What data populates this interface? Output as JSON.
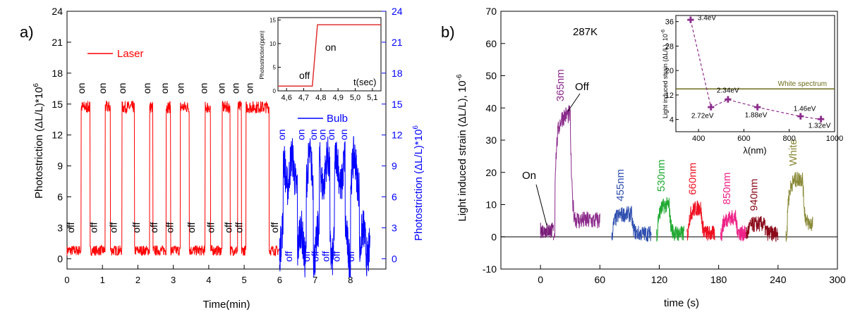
{
  "chart_data": [
    {
      "panel_label": "a)",
      "type": "line",
      "xlabel": "Time(min)",
      "ylabel": "Photostriction (ΔL/L)*10",
      "ylabel_exp": "6",
      "ylabel_right": "Photostriction (ΔL/L)*10",
      "ylabel_right_exp": "6",
      "xlim": [
        0,
        9
      ],
      "ylim": [
        -1,
        24
      ],
      "ylim_right": [
        -1,
        24
      ],
      "x_ticks": [
        "0",
        "1",
        "2",
        "3",
        "4",
        "5",
        "6",
        "7",
        "8"
      ],
      "y_ticks": [
        "0",
        "3",
        "6",
        "9",
        "12",
        "15",
        "18",
        "21",
        "24"
      ],
      "y_ticks_right": [
        "0",
        "3",
        "6",
        "9",
        "12",
        "15",
        "18",
        "21",
        "24"
      ],
      "legend": "top-left",
      "series": [
        {
          "name": "Laser",
          "color": "#ff0000",
          "axis": "left",
          "on_intervals": [
            [
              0.4,
              0.65
            ],
            [
              1.08,
              1.22
            ],
            [
              1.55,
              1.9
            ],
            [
              2.33,
              2.42
            ],
            [
              2.8,
              2.92
            ],
            [
              3.2,
              3.45
            ],
            [
              3.9,
              4.05
            ],
            [
              4.38,
              4.6
            ],
            [
              4.82,
              4.92
            ],
            [
              5.05,
              5.7
            ]
          ],
          "on_level": 14.7,
          "off_level": 0.8
        },
        {
          "name": "Bulb",
          "color": "#0000ff",
          "axis": "right",
          "on_intervals": [
            [
              6.1,
              6.5
            ],
            [
              6.75,
              6.95
            ],
            [
              7.12,
              7.42
            ],
            [
              7.55,
              7.85
            ],
            [
              8.0,
              8.25
            ]
          ],
          "on_level": 8.5,
          "off_level": 1.5
        }
      ],
      "annotations": [
        {
          "text": "on",
          "x": 0.5,
          "y": 16
        },
        {
          "text": "on",
          "x": 1.1,
          "y": 16
        },
        {
          "text": "on",
          "x": 1.65,
          "y": 16
        },
        {
          "text": "on",
          "x": 2.35,
          "y": 16
        },
        {
          "text": "on",
          "x": 2.85,
          "y": 16
        },
        {
          "text": "on",
          "x": 3.3,
          "y": 16
        },
        {
          "text": "on",
          "x": 3.95,
          "y": 16
        },
        {
          "text": "on",
          "x": 4.45,
          "y": 16
        },
        {
          "text": "on",
          "x": 4.85,
          "y": 16
        },
        {
          "text": "on",
          "x": 5.25,
          "y": 16
        },
        {
          "text": "off",
          "x": 0.2,
          "y": 2.5
        },
        {
          "text": "off",
          "x": 0.85,
          "y": 2.5
        },
        {
          "text": "off",
          "x": 1.4,
          "y": 2.5
        },
        {
          "text": "off",
          "x": 2.05,
          "y": 2.5
        },
        {
          "text": "off",
          "x": 2.55,
          "y": 2.5
        },
        {
          "text": "off",
          "x": 3.0,
          "y": 2.5
        },
        {
          "text": "off",
          "x": 3.6,
          "y": 2.5
        },
        {
          "text": "off",
          "x": 4.15,
          "y": 2.5
        },
        {
          "text": "off",
          "x": 4.65,
          "y": 2.5
        },
        {
          "text": "off",
          "x": 4.95,
          "y": 2.5
        },
        {
          "text": "off",
          "x": 5.95,
          "y": 2.5
        },
        {
          "text": "on",
          "x": 6.15,
          "y": 11.5
        },
        {
          "text": "on",
          "x": 6.7,
          "y": 11.5
        },
        {
          "text": "on",
          "x": 7.05,
          "y": 11.5
        },
        {
          "text": "on",
          "x": 7.3,
          "y": 11.5
        },
        {
          "text": "on",
          "x": 7.55,
          "y": 11.5
        },
        {
          "text": "on",
          "x": 7.9,
          "y": 11.5
        },
        {
          "text": "off",
          "x": 6.35,
          "y": -0.3
        },
        {
          "text": "off",
          "x": 6.85,
          "y": -0.3
        },
        {
          "text": "off",
          "x": 7.1,
          "y": -0.3
        },
        {
          "text": "off",
          "x": 7.4,
          "y": -0.3
        },
        {
          "text": "off",
          "x": 7.7,
          "y": -0.3
        },
        {
          "text": "off",
          "x": 8.1,
          "y": -0.3
        }
      ],
      "inset": {
        "type": "line",
        "xlabel": "t(sec)",
        "ylabel": "Photostriction(ppm)",
        "x_ticks": [
          "4,6",
          "4,7",
          "4,8",
          "4,9",
          "5,0",
          "5,1"
        ],
        "x_tick_values": [
          4.6,
          4.7,
          4.8,
          4.9,
          5.0,
          5.1
        ],
        "xlim": [
          4.55,
          5.15
        ],
        "ylim": [
          0,
          15.5
        ],
        "y_ticks": [
          "0",
          "5",
          "10",
          "15"
        ],
        "x": [
          4.55,
          4.75,
          4.78,
          5.15
        ],
        "y": [
          1,
          1,
          14,
          14
        ],
        "labels": [
          {
            "text": "off",
            "x": 4.67,
            "y": 3.5
          },
          {
            "text": "on",
            "x": 4.87,
            "y": 12
          }
        ]
      }
    },
    {
      "panel_label": "b)",
      "type": "line",
      "xlabel": "time (s)",
      "ylabel": "Light induced strain (ΔL/L), 10",
      "ylabel_exp": "-6",
      "xlim": [
        -40,
        300
      ],
      "ylim": [
        -10,
        70
      ],
      "x_ticks": [
        "0",
        "60",
        "120",
        "180",
        "240",
        "300"
      ],
      "x_tick_values": [
        0,
        60,
        120,
        180,
        240,
        300
      ],
      "y_ticks": [
        "-10",
        "0",
        "10",
        "20",
        "30",
        "40",
        "50",
        "60",
        "70"
      ],
      "title_text": "287K",
      "baseline": 0,
      "series": [
        {
          "name": "",
          "color": "#7b1f7b",
          "x": [
            0,
            13
          ],
          "level": 2,
          "on": null
        },
        {
          "name": "365nm",
          "color": "#8b2b8b",
          "x_on": [
            13,
            30
          ],
          "x_off": [
            30,
            60
          ],
          "on_level": 38,
          "off_level": 5
        },
        {
          "name": "455nm",
          "color": "#3050b0",
          "x_on": [
            72,
            92
          ],
          "x_off": [
            92,
            112
          ],
          "on_level": 7,
          "off_level": 1
        },
        {
          "name": "530nm",
          "color": "#22aa33",
          "x_on": [
            117,
            130
          ],
          "x_off": [
            130,
            145
          ],
          "on_level": 10,
          "off_level": 1
        },
        {
          "name": "660nm",
          "color": "#ee1122",
          "x_on": [
            148,
            162
          ],
          "x_off": [
            162,
            176
          ],
          "on_level": 9,
          "off_level": 1
        },
        {
          "name": "850nm",
          "color": "#ee2288",
          "x_on": [
            182,
            197
          ],
          "x_off": [
            197,
            208
          ],
          "on_level": 6,
          "off_level": 1
        },
        {
          "name": "940nm",
          "color": "#8b0a1a",
          "x_on": [
            208,
            226
          ],
          "x_off": [
            226,
            240
          ],
          "on_level": 4,
          "off_level": 1
        },
        {
          "name": "White",
          "color": "#8a8a3a",
          "x_on": [
            248,
            265
          ],
          "x_off": [
            265,
            275
          ],
          "on_level": 18,
          "off_level": 4
        }
      ],
      "annotations": [
        {
          "text": "On",
          "x": 0,
          "y": 16
        },
        {
          "text": "Off",
          "x": 42,
          "y": 48
        }
      ],
      "inset": {
        "type": "line",
        "xlabel": "λ(nm)",
        "ylabel": "Light induced strain (ΔL/L), 10",
        "ylabel_exp": "-6",
        "xlim": [
          300,
          1000
        ],
        "ylim": [
          0,
          38
        ],
        "x_ticks": [
          "400",
          "600",
          "800",
          "1000"
        ],
        "x_tick_values": [
          400,
          600,
          800,
          1000
        ],
        "y_ticks": [
          "4",
          "12",
          "20",
          "28",
          "36"
        ],
        "y_tick_values": [
          4,
          12,
          20,
          28,
          36
        ],
        "x": [
          365,
          455,
          530,
          660,
          850,
          940
        ],
        "y": [
          36.5,
          8,
          10.5,
          8,
          5,
          4
        ],
        "point_labels": [
          "3.4eV",
          "2.72eV",
          "2.34eV",
          "1.88eV",
          "1.46eV",
          "1.32eV"
        ],
        "color": "#8b2b8b",
        "reference_line": {
          "label": "White spectrum",
          "y": 14,
          "color": "#6b6b1a"
        }
      }
    }
  ],
  "colors": {
    "laser": "#ff0000",
    "bulb": "#0000ff",
    "axis": "#000000"
  }
}
